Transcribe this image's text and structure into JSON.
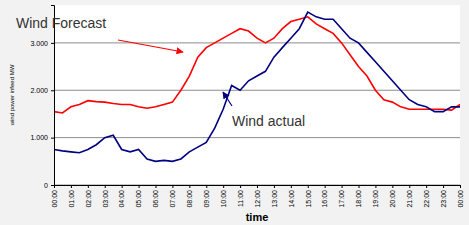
{
  "chart_data": {
    "type": "line",
    "x_label": "time",
    "y_label": "wind power infeed MW",
    "x": [
      0,
      0.5,
      1,
      1.5,
      2,
      2.5,
      3,
      3.5,
      4,
      4.5,
      5,
      5.5,
      6,
      6.5,
      7,
      7.5,
      8,
      8.5,
      9,
      9.5,
      10,
      10.5,
      11,
      11.5,
      12,
      12.5,
      13,
      13.5,
      14,
      14.5,
      15,
      15.5,
      16,
      16.5,
      17,
      17.5,
      18,
      18.5,
      19,
      19.5,
      20,
      20.5,
      21,
      21.5,
      22,
      22.5,
      23,
      23.5,
      24
    ],
    "series": [
      {
        "name": "Wind Forecast",
        "color": "#ff0000",
        "values": [
          1550,
          1520,
          1650,
          1700,
          1780,
          1760,
          1750,
          1720,
          1700,
          1700,
          1650,
          1620,
          1650,
          1700,
          1750,
          2000,
          2300,
          2700,
          2900,
          3000,
          3100,
          3200,
          3300,
          3250,
          3100,
          3000,
          3100,
          3300,
          3450,
          3500,
          3550,
          3400,
          3300,
          3200,
          3000,
          2750,
          2500,
          2300,
          2000,
          1800,
          1750,
          1650,
          1600,
          1600,
          1600,
          1600,
          1600,
          1580,
          1700
        ]
      },
      {
        "name": "Wind actual",
        "color": "#000080",
        "values": [
          750,
          720,
          700,
          680,
          750,
          850,
          1000,
          1050,
          750,
          700,
          750,
          550,
          500,
          520,
          500,
          550,
          700,
          800,
          900,
          1200,
          1600,
          2100,
          2000,
          2200,
          2300,
          2400,
          2700,
          2900,
          3100,
          3300,
          3650,
          3550,
          3500,
          3500,
          3300,
          3100,
          3000,
          2800,
          2600,
          2400,
          2200,
          2000,
          1800,
          1700,
          1650,
          1550,
          1550,
          1650,
          1650
        ]
      }
    ],
    "xlim": [
      0,
      24
    ],
    "xticks": [
      {
        "value": 0,
        "label": "00:00"
      },
      {
        "value": 1,
        "label": "01:00"
      },
      {
        "value": 2,
        "label": "02:00"
      },
      {
        "value": 3,
        "label": "03:00"
      },
      {
        "value": 4,
        "label": "04:00"
      },
      {
        "value": 5,
        "label": "05:00"
      },
      {
        "value": 6,
        "label": "06:00"
      },
      {
        "value": 7,
        "label": "07:00"
      },
      {
        "value": 8,
        "label": "08:00"
      },
      {
        "value": 9,
        "label": "09:00"
      },
      {
        "value": 10,
        "label": "10:00"
      },
      {
        "value": 11,
        "label": "11:00"
      },
      {
        "value": 12,
        "label": "12:00"
      },
      {
        "value": 13,
        "label": "13:00"
      },
      {
        "value": 14,
        "label": "14:00"
      },
      {
        "value": 15,
        "label": "15:00"
      },
      {
        "value": 16,
        "label": "16:00"
      },
      {
        "value": 17,
        "label": "17:00"
      },
      {
        "value": 18,
        "label": "18:00"
      },
      {
        "value": 19,
        "label": "19:00"
      },
      {
        "value": 20,
        "label": "20:00"
      },
      {
        "value": 21,
        "label": "21:00"
      },
      {
        "value": 22,
        "label": "22:00"
      },
      {
        "value": 23,
        "label": "23:00"
      },
      {
        "value": 24,
        "label": "00:00"
      }
    ],
    "ylim": [
      0,
      3800
    ],
    "yticks": [
      0,
      {
        "value": 1000,
        "label": "1.000"
      },
      {
        "value": 2000,
        "label": "2.000"
      },
      {
        "value": 3000,
        "label": "3.000"
      }
    ],
    "grid": true
  }
}
